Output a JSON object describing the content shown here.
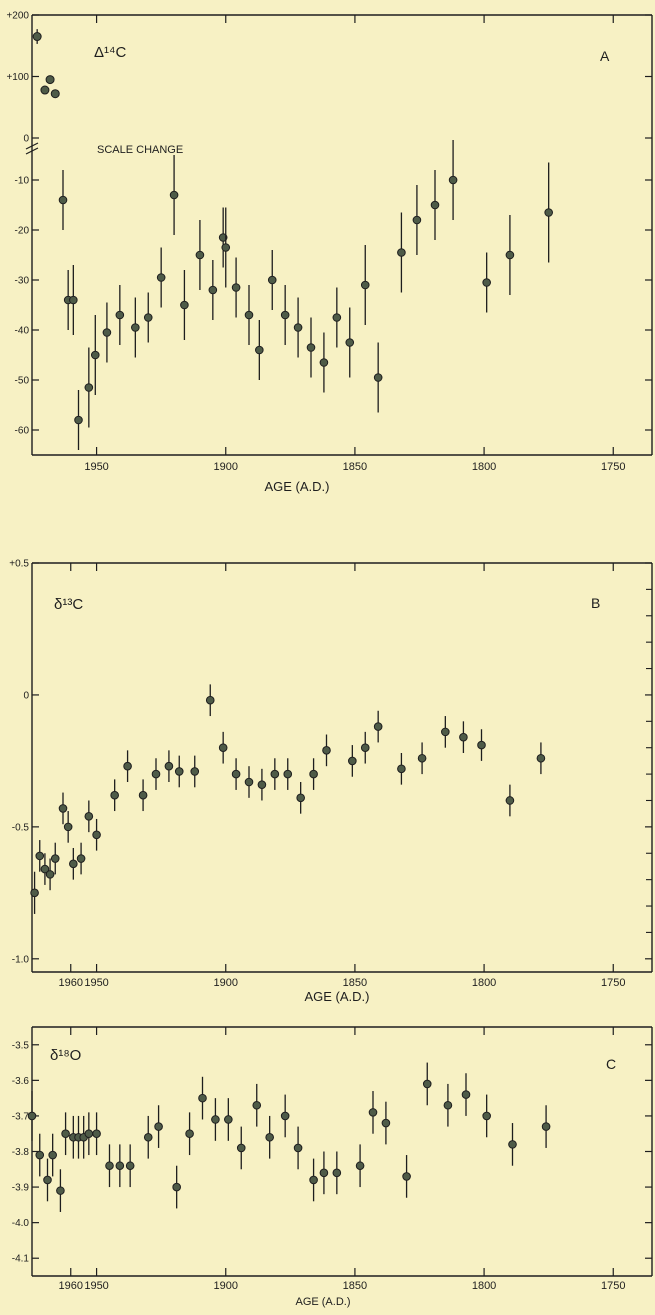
{
  "chart_data": [
    {
      "type": "scatter",
      "panel_label": "A",
      "symbol_label": "Δ¹⁴C",
      "annotation": "SCALE CHANGE",
      "xlabel": "AGE (A.D.)",
      "xlim": [
        1975,
        1735
      ],
      "x_ticks": [
        1950,
        1900,
        1850,
        1800,
        1750
      ],
      "upper_ylim": [
        0,
        200
      ],
      "upper_ticks": [
        "+200",
        "+100",
        "0"
      ],
      "upper_points": [
        {
          "x": 1973,
          "y": 165,
          "err": 12
        },
        {
          "x": 1970,
          "y": 78
        },
        {
          "x": 1968,
          "y": 95
        },
        {
          "x": 1966,
          "y": 72
        }
      ],
      "ylim": [
        -65,
        -5
      ],
      "y_ticks": [
        -10,
        -20,
        -30,
        -40,
        -50,
        -60
      ],
      "points": [
        {
          "x": 1963,
          "y": -14,
          "err": 6
        },
        {
          "x": 1961,
          "y": -34,
          "err": 6
        },
        {
          "x": 1959,
          "y": -34,
          "err": 7
        },
        {
          "x": 1957,
          "y": -58,
          "err": 6
        },
        {
          "x": 1953,
          "y": -51.5,
          "err": 8
        },
        {
          "x": 1950.5,
          "y": -45,
          "err": 8
        },
        {
          "x": 1946,
          "y": -40.5,
          "err": 6
        },
        {
          "x": 1941,
          "y": -37,
          "err": 6
        },
        {
          "x": 1935,
          "y": -39.5,
          "err": 6
        },
        {
          "x": 1930,
          "y": -37.5,
          "err": 5
        },
        {
          "x": 1925,
          "y": -29.5,
          "err": 6
        },
        {
          "x": 1920,
          "y": -13,
          "err": 8
        },
        {
          "x": 1916,
          "y": -35,
          "err": 7
        },
        {
          "x": 1910,
          "y": -25,
          "err": 7
        },
        {
          "x": 1905,
          "y": -32,
          "err": 6
        },
        {
          "x": 1901,
          "y": -21.5,
          "err": 6
        },
        {
          "x": 1900,
          "y": -23.5,
          "err": 8
        },
        {
          "x": 1896,
          "y": -31.5,
          "err": 6
        },
        {
          "x": 1891,
          "y": -37,
          "err": 6
        },
        {
          "x": 1887,
          "y": -44,
          "err": 6
        },
        {
          "x": 1882,
          "y": -30,
          "err": 6
        },
        {
          "x": 1877,
          "y": -37,
          "err": 6
        },
        {
          "x": 1872,
          "y": -39.5,
          "err": 6
        },
        {
          "x": 1867,
          "y": -43.5,
          "err": 6
        },
        {
          "x": 1862,
          "y": -46.5,
          "err": 6
        },
        {
          "x": 1857,
          "y": -37.5,
          "err": 6
        },
        {
          "x": 1852,
          "y": -42.5,
          "err": 7
        },
        {
          "x": 1846,
          "y": -31,
          "err": 8
        },
        {
          "x": 1841,
          "y": -49.5,
          "err": 7
        },
        {
          "x": 1832,
          "y": -24.5,
          "err": 8
        },
        {
          "x": 1826,
          "y": -18,
          "err": 7
        },
        {
          "x": 1819,
          "y": -15,
          "err": 7
        },
        {
          "x": 1812,
          "y": -10,
          "err": 8
        },
        {
          "x": 1799,
          "y": -30.5,
          "err": 6
        },
        {
          "x": 1790,
          "y": -25,
          "err": 8
        },
        {
          "x": 1775,
          "y": -16.5,
          "err": 10
        }
      ]
    },
    {
      "type": "scatter",
      "panel_label": "B",
      "symbol_label": "δ¹³C",
      "xlabel": "AGE (A.D.)",
      "xlim": [
        1975,
        1735
      ],
      "x_ticks": [
        1960,
        1950,
        1900,
        1850,
        1800,
        1750
      ],
      "ylim": [
        -1.05,
        0.5
      ],
      "y_ticks": [
        "+0.5",
        "0",
        "-0.5",
        "-1.0"
      ],
      "points": [
        {
          "x": 1974,
          "y": -0.75,
          "err": 0.08
        },
        {
          "x": 1972,
          "y": -0.61,
          "err": 0.06
        },
        {
          "x": 1970,
          "y": -0.66,
          "err": 0.06
        },
        {
          "x": 1968,
          "y": -0.68,
          "err": 0.06
        },
        {
          "x": 1966,
          "y": -0.62,
          "err": 0.06
        },
        {
          "x": 1963,
          "y": -0.43,
          "err": 0.06
        },
        {
          "x": 1961,
          "y": -0.5,
          "err": 0.06
        },
        {
          "x": 1959,
          "y": -0.64,
          "err": 0.06
        },
        {
          "x": 1956,
          "y": -0.62,
          "err": 0.06
        },
        {
          "x": 1953,
          "y": -0.46,
          "err": 0.06
        },
        {
          "x": 1950,
          "y": -0.53,
          "err": 0.06
        },
        {
          "x": 1943,
          "y": -0.38,
          "err": 0.06
        },
        {
          "x": 1938,
          "y": -0.27,
          "err": 0.06
        },
        {
          "x": 1932,
          "y": -0.38,
          "err": 0.06
        },
        {
          "x": 1927,
          "y": -0.3,
          "err": 0.06
        },
        {
          "x": 1922,
          "y": -0.27,
          "err": 0.06
        },
        {
          "x": 1918,
          "y": -0.29,
          "err": 0.06
        },
        {
          "x": 1912,
          "y": -0.29,
          "err": 0.06
        },
        {
          "x": 1906,
          "y": -0.02,
          "err": 0.06
        },
        {
          "x": 1901,
          "y": -0.2,
          "err": 0.06
        },
        {
          "x": 1896,
          "y": -0.3,
          "err": 0.06
        },
        {
          "x": 1891,
          "y": -0.33,
          "err": 0.06
        },
        {
          "x": 1886,
          "y": -0.34,
          "err": 0.06
        },
        {
          "x": 1881,
          "y": -0.3,
          "err": 0.06
        },
        {
          "x": 1876,
          "y": -0.3,
          "err": 0.06
        },
        {
          "x": 1871,
          "y": -0.39,
          "err": 0.06
        },
        {
          "x": 1866,
          "y": -0.3,
          "err": 0.06
        },
        {
          "x": 1861,
          "y": -0.21,
          "err": 0.06
        },
        {
          "x": 1851,
          "y": -0.25,
          "err": 0.06
        },
        {
          "x": 1846,
          "y": -0.2,
          "err": 0.06
        },
        {
          "x": 1841,
          "y": -0.12,
          "err": 0.06
        },
        {
          "x": 1832,
          "y": -0.28,
          "err": 0.06
        },
        {
          "x": 1824,
          "y": -0.24,
          "err": 0.06
        },
        {
          "x": 1815,
          "y": -0.14,
          "err": 0.06
        },
        {
          "x": 1808,
          "y": -0.16,
          "err": 0.06
        },
        {
          "x": 1801,
          "y": -0.19,
          "err": 0.06
        },
        {
          "x": 1790,
          "y": -0.4,
          "err": 0.06
        },
        {
          "x": 1778,
          "y": -0.24,
          "err": 0.06
        }
      ]
    },
    {
      "type": "scatter",
      "panel_label": "C",
      "symbol_label": "δ¹⁸O",
      "xlabel": "AGE (A.D.)",
      "xlim": [
        1975,
        1735
      ],
      "x_ticks": [
        1960,
        1950,
        1900,
        1850,
        1800,
        1750
      ],
      "ylim": [
        -4.15,
        -3.45
      ],
      "y_ticks": [
        "-3.5",
        "-3.6",
        "-3.7",
        "-3.8",
        "-3.9",
        "-4.0",
        "-4.1"
      ],
      "points": [
        {
          "x": 1975,
          "y": -3.7,
          "err": 0.07
        },
        {
          "x": 1972,
          "y": -3.81,
          "err": 0.06
        },
        {
          "x": 1969,
          "y": -3.88,
          "err": 0.06
        },
        {
          "x": 1967,
          "y": -3.81,
          "err": 0.06
        },
        {
          "x": 1964,
          "y": -3.91,
          "err": 0.06
        },
        {
          "x": 1962,
          "y": -3.75,
          "err": 0.06
        },
        {
          "x": 1959,
          "y": -3.76,
          "err": 0.06
        },
        {
          "x": 1957,
          "y": -3.76,
          "err": 0.06
        },
        {
          "x": 1955,
          "y": -3.76,
          "err": 0.06
        },
        {
          "x": 1953,
          "y": -3.75,
          "err": 0.06
        },
        {
          "x": 1950,
          "y": -3.75,
          "err": 0.06
        },
        {
          "x": 1945,
          "y": -3.84,
          "err": 0.06
        },
        {
          "x": 1941,
          "y": -3.84,
          "err": 0.06
        },
        {
          "x": 1937,
          "y": -3.84,
          "err": 0.06
        },
        {
          "x": 1930,
          "y": -3.76,
          "err": 0.06
        },
        {
          "x": 1926,
          "y": -3.73,
          "err": 0.06
        },
        {
          "x": 1919,
          "y": -3.9,
          "err": 0.06
        },
        {
          "x": 1914,
          "y": -3.75,
          "err": 0.06
        },
        {
          "x": 1909,
          "y": -3.65,
          "err": 0.06
        },
        {
          "x": 1904,
          "y": -3.71,
          "err": 0.06
        },
        {
          "x": 1899,
          "y": -3.71,
          "err": 0.06
        },
        {
          "x": 1894,
          "y": -3.79,
          "err": 0.06
        },
        {
          "x": 1888,
          "y": -3.67,
          "err": 0.06
        },
        {
          "x": 1883,
          "y": -3.76,
          "err": 0.06
        },
        {
          "x": 1877,
          "y": -3.7,
          "err": 0.06
        },
        {
          "x": 1872,
          "y": -3.79,
          "err": 0.06
        },
        {
          "x": 1866,
          "y": -3.88,
          "err": 0.06
        },
        {
          "x": 1862,
          "y": -3.86,
          "err": 0.06
        },
        {
          "x": 1857,
          "y": -3.86,
          "err": 0.06
        },
        {
          "x": 1848,
          "y": -3.84,
          "err": 0.06
        },
        {
          "x": 1843,
          "y": -3.69,
          "err": 0.06
        },
        {
          "x": 1838,
          "y": -3.72,
          "err": 0.06
        },
        {
          "x": 1830,
          "y": -3.87,
          "err": 0.06
        },
        {
          "x": 1822,
          "y": -3.61,
          "err": 0.06
        },
        {
          "x": 1814,
          "y": -3.67,
          "err": 0.06
        },
        {
          "x": 1807,
          "y": -3.64,
          "err": 0.06
        },
        {
          "x": 1799,
          "y": -3.7,
          "err": 0.06
        },
        {
          "x": 1789,
          "y": -3.78,
          "err": 0.06
        },
        {
          "x": 1776,
          "y": -3.73,
          "err": 0.06
        }
      ]
    }
  ]
}
